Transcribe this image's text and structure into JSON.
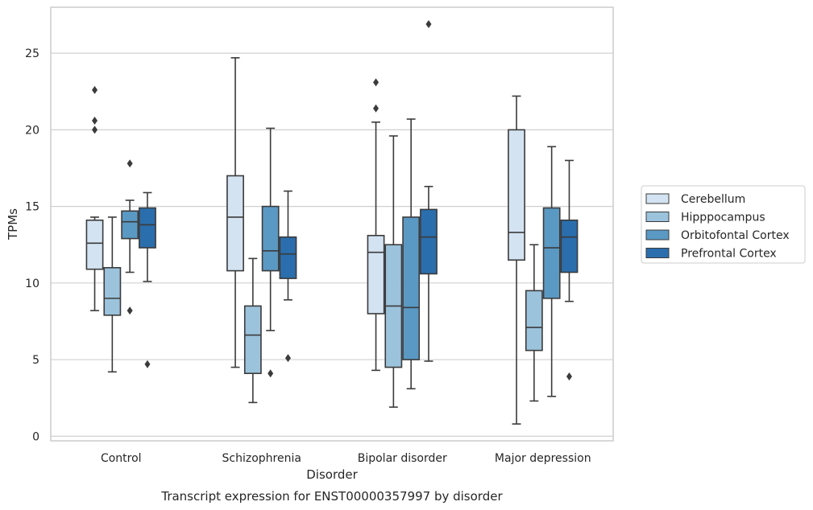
{
  "chart_data": {
    "type": "box",
    "caption": "Transcript expression for ENST00000357997 by disorder",
    "xlabel": "Disorder",
    "ylabel": "TPMs",
    "ylim": [
      -0.3,
      28
    ],
    "yticks": [
      0,
      5,
      10,
      15,
      20,
      25
    ],
    "grid": "horizontal",
    "legend_position": "right",
    "categories": [
      "Control",
      "Schizophrenia",
      "Bipolar disorder",
      "Major depression"
    ],
    "series": [
      {
        "name": "Cerebellum",
        "color": "#d3e3f2",
        "boxes": [
          {
            "whislo": 8.2,
            "q1": 10.9,
            "med": 12.6,
            "q3": 14.1,
            "whishi": 14.3,
            "fliers": [
              20.0,
              20.6,
              22.6
            ]
          },
          {
            "whislo": 4.5,
            "q1": 10.8,
            "med": 14.3,
            "q3": 17.0,
            "whishi": 24.7,
            "fliers": []
          },
          {
            "whislo": 4.3,
            "q1": 8.0,
            "med": 12.0,
            "q3": 13.1,
            "whishi": 20.5,
            "fliers": [
              21.4,
              23.1
            ]
          },
          {
            "whislo": 0.8,
            "q1": 11.5,
            "med": 13.3,
            "q3": 20.0,
            "whishi": 22.2,
            "fliers": []
          }
        ]
      },
      {
        "name": "Hipppocampus",
        "color": "#9cc3dc",
        "boxes": [
          {
            "whislo": 4.2,
            "q1": 7.9,
            "med": 9.0,
            "q3": 11.0,
            "whishi": 14.3,
            "fliers": []
          },
          {
            "whislo": 2.2,
            "q1": 4.1,
            "med": 6.6,
            "q3": 8.5,
            "whishi": 11.6,
            "fliers": []
          },
          {
            "whislo": 1.9,
            "q1": 4.5,
            "med": 8.5,
            "q3": 12.5,
            "whishi": 19.6,
            "fliers": []
          },
          {
            "whislo": 2.3,
            "q1": 5.6,
            "med": 7.1,
            "q3": 9.5,
            "whishi": 12.5,
            "fliers": []
          }
        ]
      },
      {
        "name": "Orbitofontal Cortex",
        "color": "#5b99c5",
        "boxes": [
          {
            "whislo": 10.7,
            "q1": 12.9,
            "med": 14.0,
            "q3": 14.7,
            "whishi": 15.4,
            "fliers": [
              8.2,
              17.8
            ]
          },
          {
            "whislo": 6.9,
            "q1": 10.8,
            "med": 12.1,
            "q3": 15.0,
            "whishi": 20.1,
            "fliers": [
              4.1
            ]
          },
          {
            "whislo": 3.1,
            "q1": 5.0,
            "med": 8.4,
            "q3": 14.3,
            "whishi": 20.7,
            "fliers": []
          },
          {
            "whislo": 2.6,
            "q1": 9.0,
            "med": 12.3,
            "q3": 14.9,
            "whishi": 18.9,
            "fliers": []
          }
        ]
      },
      {
        "name": "Prefrontal Cortex",
        "color": "#2a6ead",
        "boxes": [
          {
            "whislo": 10.1,
            "q1": 12.3,
            "med": 13.8,
            "q3": 14.9,
            "whishi": 15.9,
            "fliers": [
              4.7
            ]
          },
          {
            "whislo": 8.9,
            "q1": 10.3,
            "med": 11.9,
            "q3": 13.0,
            "whishi": 16.0,
            "fliers": [
              5.1
            ]
          },
          {
            "whislo": 4.9,
            "q1": 10.6,
            "med": 13.0,
            "q3": 14.8,
            "whishi": 16.3,
            "fliers": [
              26.9
            ]
          },
          {
            "whislo": 8.8,
            "q1": 10.7,
            "med": 13.0,
            "q3": 14.1,
            "whishi": 18.0,
            "fliers": [
              3.9
            ]
          }
        ]
      }
    ]
  }
}
